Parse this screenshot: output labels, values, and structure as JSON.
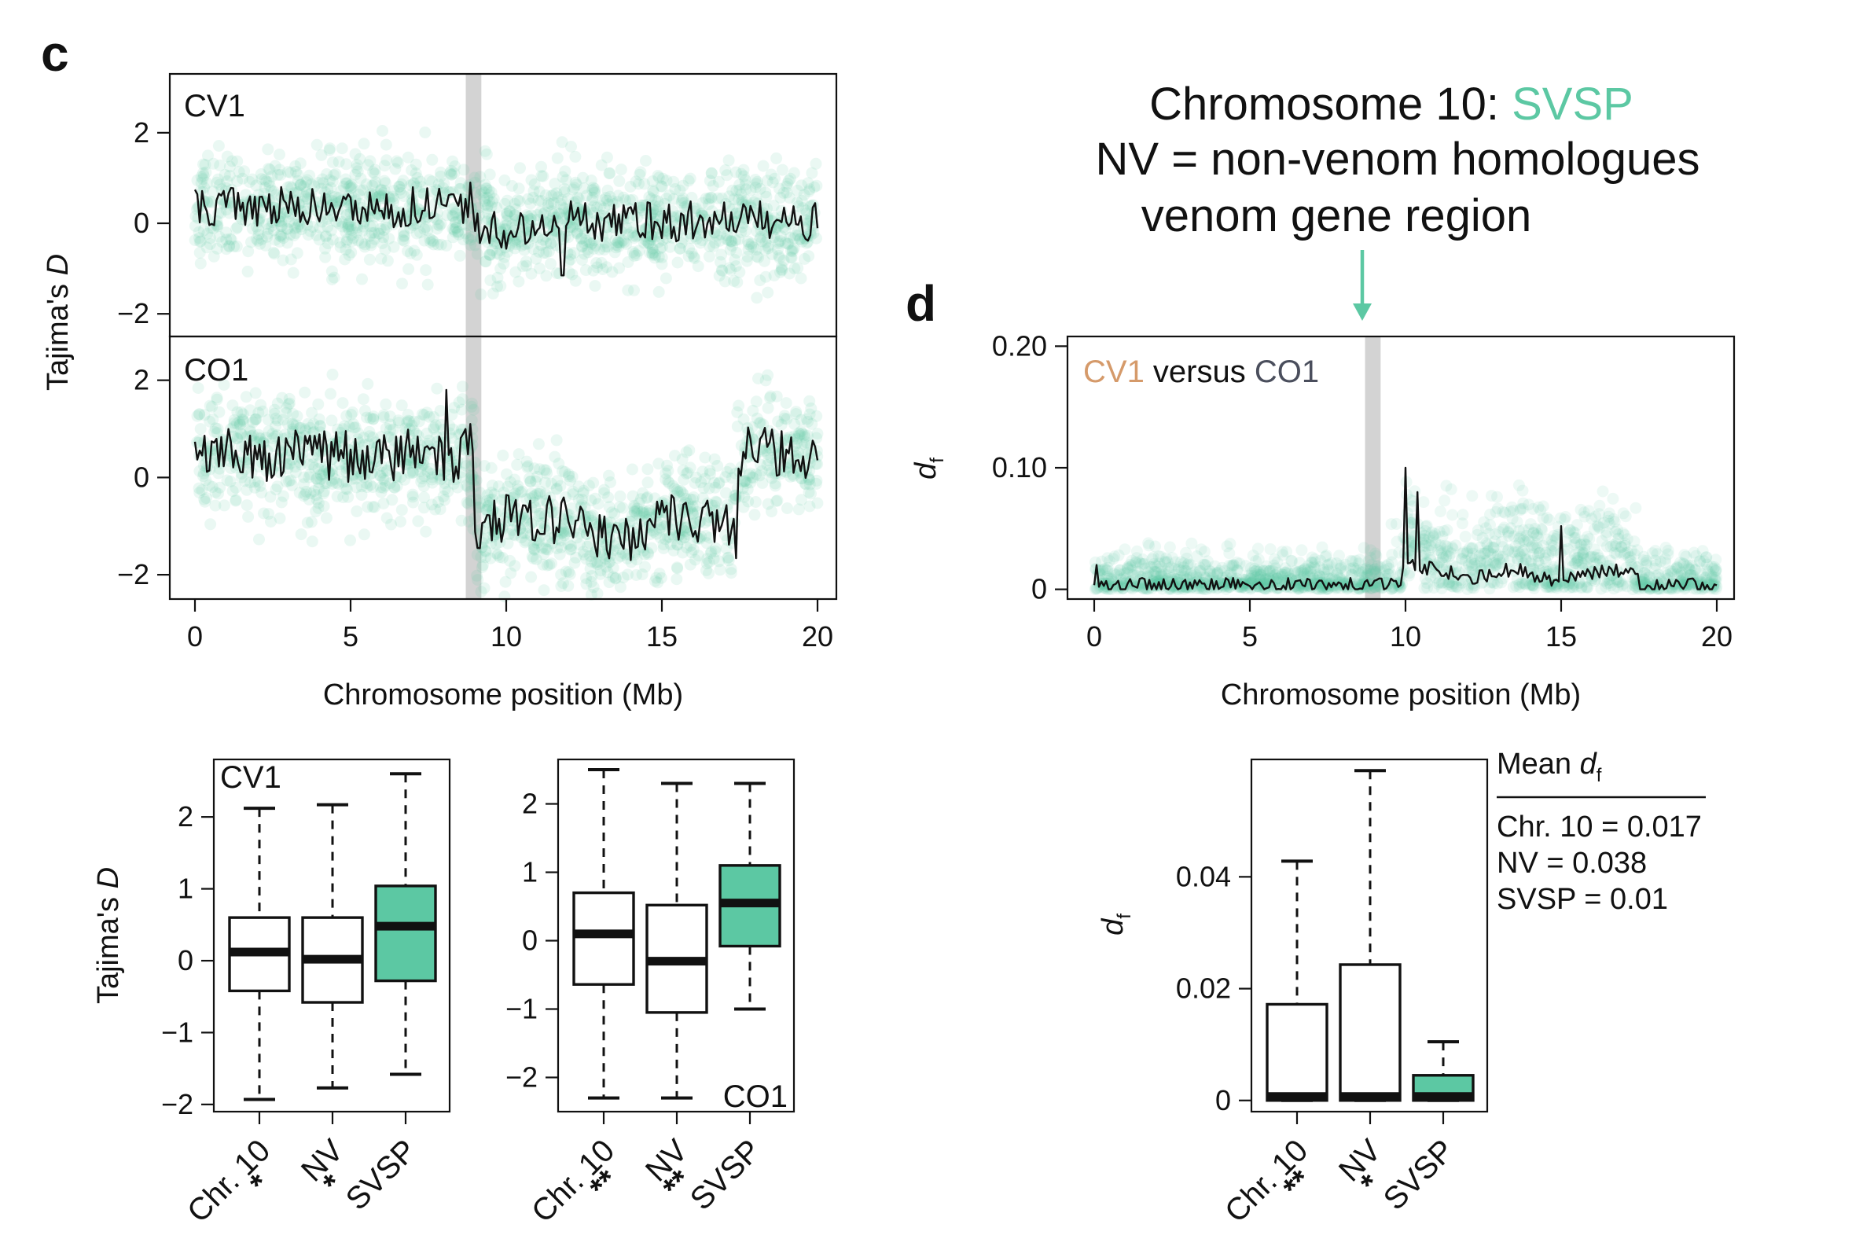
{
  "colors": {
    "cv1": "#d59a6a",
    "co1": "#4a4e5c",
    "accent": "#5cc8a3",
    "points": "#5fcaa5",
    "highlight": "#d3d3d3"
  },
  "panels": {
    "c_letter": "c",
    "d_letter": "d"
  },
  "annotation": {
    "line1_prefix": "Chromosome 10: ",
    "line1_highlight": "SVSP",
    "line2": "NV = non-venom homologues",
    "line3": "venom gene region"
  },
  "legend": {
    "title_prefix": "Mean ",
    "title_var": "d",
    "title_sub": "f",
    "entries": [
      "Chr. 10 = 0.017",
      "NV = 0.038",
      "SVSP = 0.01"
    ]
  },
  "chart_data": [
    {
      "id": "c_top",
      "type": "scatter",
      "label": "CV1",
      "ylabel": "Tajima's D",
      "ylabel_var": "D",
      "xlim": [
        0,
        20
      ],
      "ylim": [
        -2.5,
        3.3
      ],
      "yticks": [
        "2",
        "0",
        "−2"
      ],
      "ytick_values": [
        2,
        0,
        -2
      ],
      "highlight_x": [
        8.7,
        9.2
      ],
      "grid": false
    },
    {
      "id": "c_bottom",
      "type": "scatter",
      "label": "CO1",
      "xlabel": "Chromosome position (Mb)",
      "xticks": [
        "0",
        "5",
        "10",
        "15",
        "20"
      ],
      "xtick_values": [
        0,
        5,
        10,
        15,
        20
      ],
      "xlim": [
        0,
        20
      ],
      "ylim": [
        -2.5,
        2.9
      ],
      "yticks": [
        "2",
        "0",
        "−2"
      ],
      "ytick_values": [
        2,
        0,
        -2
      ],
      "highlight_x": [
        8.7,
        9.2
      ],
      "grid": false
    },
    {
      "id": "d_main",
      "type": "scatter",
      "label_a": "CV1",
      "label_mid": " versus ",
      "label_b": "CO1",
      "ylabel_var": "d",
      "ylabel_sub": "f",
      "xlabel": "Chromosome position (Mb)",
      "xticks": [
        "0",
        "5",
        "10",
        "15",
        "20"
      ],
      "xtick_values": [
        0,
        5,
        10,
        15,
        20
      ],
      "yticks": [
        "0.20",
        "0.10",
        "0"
      ],
      "ytick_values": [
        0.2,
        0.1,
        0
      ],
      "xlim": [
        0,
        20
      ],
      "ylim": [
        -0.008,
        0.208
      ],
      "highlight_x": [
        8.7,
        9.2
      ],
      "grid": false
    },
    {
      "id": "c_box_cv1",
      "type": "box",
      "label": "CV1",
      "ylabel": "Tajima's D",
      "ylabel_var": "D",
      "ylim": [
        -2.1,
        2.8
      ],
      "yticks": [
        "2",
        "1",
        "0",
        "−1",
        "−2"
      ],
      "ytick_values": [
        2,
        1,
        0,
        -1,
        -2
      ],
      "categories": [
        "Chr. 10",
        "NV",
        "SVSP"
      ],
      "stars": [
        "*",
        "*",
        ""
      ],
      "boxes": [
        {
          "min": -1.93,
          "q1": -0.42,
          "median": 0.12,
          "q3": 0.6,
          "max": 2.12,
          "fill": "white"
        },
        {
          "min": -1.77,
          "q1": -0.58,
          "median": 0.02,
          "q3": 0.6,
          "max": 2.17,
          "fill": "green"
        },
        {
          "min": -1.58,
          "q1": -0.28,
          "median": 0.48,
          "q3": 1.04,
          "max": 2.6,
          "fill": "green"
        }
      ]
    },
    {
      "id": "c_box_co1",
      "type": "box",
      "label": "CO1",
      "ylim": [
        -2.5,
        2.65
      ],
      "yticks": [
        "2",
        "1",
        "0",
        "−1",
        "−2"
      ],
      "ytick_values": [
        2,
        1,
        0,
        -1,
        -2
      ],
      "categories": [
        "Chr. 10",
        "NV",
        "SVSP"
      ],
      "stars": [
        "**",
        "**",
        ""
      ],
      "boxes": [
        {
          "min": -2.3,
          "q1": -0.64,
          "median": 0.1,
          "q3": 0.7,
          "max": 2.5,
          "fill": "white"
        },
        {
          "min": -2.3,
          "q1": -1.05,
          "median": -0.3,
          "q3": 0.52,
          "max": 2.3,
          "fill": "white"
        },
        {
          "min": -1.0,
          "q1": -0.08,
          "median": 0.55,
          "q3": 1.1,
          "max": 2.3,
          "fill": "green"
        }
      ]
    },
    {
      "id": "d_box",
      "type": "box",
      "ylabel_var": "d",
      "ylabel_sub": "f",
      "ylim": [
        -0.002,
        0.061
      ],
      "yticks": [
        "0.04",
        "0.02",
        "0"
      ],
      "ytick_values": [
        0.04,
        0.02,
        0
      ],
      "categories": [
        "Chr. 10",
        "NV",
        "SVSP"
      ],
      "stars": [
        "**",
        "*",
        ""
      ],
      "boxes": [
        {
          "min": 0.0,
          "q1": 0.0,
          "median": 0.0,
          "q3": 0.0172,
          "max": 0.0428,
          "fill": "white"
        },
        {
          "min": 0.0,
          "q1": 0.0,
          "median": 0.0,
          "q3": 0.0243,
          "max": 0.059,
          "fill": "white"
        },
        {
          "min": 0.0,
          "q1": 0.0,
          "median": 0.0,
          "q3": 0.0045,
          "max": 0.0105,
          "fill": "green"
        }
      ]
    }
  ]
}
